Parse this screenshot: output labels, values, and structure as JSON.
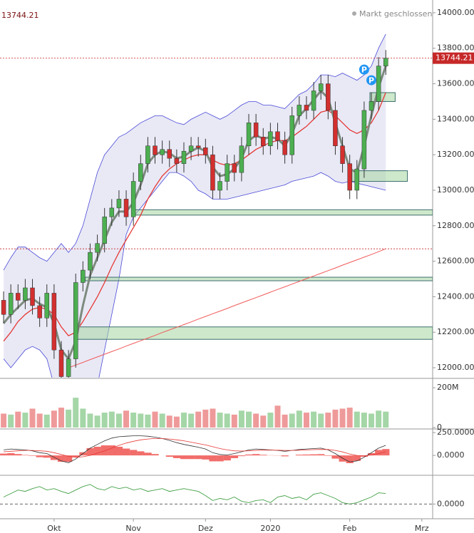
{
  "chart_data": [
    {
      "type": "candlestick",
      "status": "Markt geschlossen",
      "x": [
        0,
        1,
        2,
        3,
        4,
        5,
        6,
        7,
        8,
        9,
        10,
        11,
        12,
        13,
        14,
        15,
        16,
        17,
        18,
        19,
        20,
        21,
        22,
        23,
        24,
        25,
        26,
        27,
        28,
        29,
        30,
        31,
        32,
        33,
        34,
        35,
        36,
        37,
        38,
        39,
        40,
        41,
        42,
        43,
        44,
        45,
        46,
        47,
        48,
        49,
        50,
        51,
        52,
        53
      ],
      "xlim": [
        -0.5,
        59.5
      ],
      "xticks": [
        {
          "value": 7,
          "label": "Okt"
        },
        {
          "value": 18,
          "label": "Nov"
        },
        {
          "value": 28,
          "label": "Dez"
        },
        {
          "value": 37,
          "label": "2020"
        },
        {
          "value": 48,
          "label": "Feb"
        },
        {
          "value": 58,
          "label": "Mrz"
        }
      ],
      "ylim": [
        11944,
        14072
      ],
      "yticks": [
        {
          "value": 12000,
          "label": "12000.00"
        },
        {
          "value": 12200,
          "label": "12200.00"
        },
        {
          "value": 12400,
          "label": "12400.00"
        },
        {
          "value": 12600,
          "label": "12600.00"
        },
        {
          "value": 12800,
          "label": "12800.00"
        },
        {
          "value": 13000,
          "label": "13000.00"
        },
        {
          "value": 13200,
          "label": "13200.00"
        },
        {
          "value": 13400,
          "label": "13400.00"
        },
        {
          "value": 13600,
          "label": "13600.00"
        },
        {
          "value": 13800,
          "label": "13800.00"
        },
        {
          "value": 14000,
          "label": "14000.00"
        }
      ],
      "open": [
        12380,
        12300,
        12420,
        12380,
        12450,
        12350,
        12280,
        12420,
        12100,
        11950,
        12050,
        12480,
        12550,
        12650,
        12700,
        12850,
        12900,
        12950,
        12850,
        13050,
        13150,
        13250,
        13200,
        13230,
        13180,
        13150,
        13220,
        13250,
        13240,
        13200,
        13000,
        13050,
        13150,
        13100,
        13250,
        13380,
        13300,
        13250,
        13330,
        13280,
        13200,
        13420,
        13480,
        13450,
        13560,
        13600,
        13450,
        13250,
        13150,
        13000,
        13120,
        13450,
        13500,
        13700
      ],
      "high": [
        12430,
        12470,
        12470,
        12500,
        12500,
        12400,
        12470,
        12470,
        12150,
        12100,
        12530,
        12600,
        12700,
        12750,
        12900,
        12950,
        13000,
        13000,
        13100,
        13200,
        13300,
        13300,
        13280,
        13280,
        13230,
        13270,
        13300,
        13300,
        13290,
        13250,
        13100,
        13200,
        13200,
        13300,
        13430,
        13430,
        13350,
        13380,
        13380,
        13330,
        13470,
        13530,
        13530,
        13610,
        13650,
        13650,
        13500,
        13300,
        13200,
        13170,
        13500,
        13550,
        13750,
        13790
      ],
      "low": [
        12250,
        12250,
        12330,
        12330,
        12300,
        12230,
        12230,
        12050,
        11900,
        11900,
        12000,
        12430,
        12500,
        12600,
        12650,
        12800,
        12850,
        12800,
        12800,
        13000,
        13100,
        13150,
        13150,
        13130,
        13100,
        13100,
        13170,
        13190,
        13150,
        12950,
        12950,
        13000,
        13050,
        13050,
        13200,
        13250,
        13200,
        13200,
        13230,
        13150,
        13150,
        13370,
        13400,
        13400,
        13510,
        13400,
        13200,
        13100,
        12950,
        12950,
        13070,
        13400,
        13450,
        13650
      ],
      "close": [
        12300,
        12420,
        12380,
        12450,
        12350,
        12280,
        12420,
        12100,
        11950,
        12050,
        12480,
        12550,
        12650,
        12700,
        12850,
        12900,
        12950,
        12850,
        13050,
        13150,
        13250,
        13200,
        13230,
        13180,
        13150,
        13220,
        13250,
        13240,
        13200,
        13000,
        13050,
        13150,
        13100,
        13250,
        13380,
        13300,
        13250,
        13330,
        13280,
        13200,
        13420,
        13480,
        13450,
        13560,
        13600,
        13450,
        13250,
        13150,
        13000,
        13120,
        13450,
        13500,
        13700,
        13744.21
      ],
      "up_color": "#4caf50",
      "down_color": "#d32f2f",
      "band": {
        "color": "#4a4ad8",
        "fill": "#e4e4f4",
        "upper": [
          12550,
          12620,
          12680,
          12680,
          12650,
          12620,
          12600,
          12650,
          12700,
          12650,
          12700,
          12800,
          12950,
          13100,
          13200,
          13250,
          13300,
          13320,
          13350,
          13380,
          13400,
          13420,
          13420,
          13400,
          13380,
          13370,
          13400,
          13420,
          13440,
          13420,
          13400,
          13420,
          13450,
          13480,
          13500,
          13500,
          13480,
          13480,
          13470,
          13460,
          13500,
          13540,
          13560,
          13600,
          13650,
          13650,
          13640,
          13660,
          13640,
          13620,
          13650,
          13700,
          13800,
          13880
        ],
        "lower": [
          12050,
          12000,
          12050,
          12100,
          12120,
          12100,
          12050,
          11900,
          11700,
          11600,
          11550,
          11650,
          11750,
          11900,
          12100,
          12300,
          12500,
          12750,
          12850,
          12900,
          12950,
          13000,
          13050,
          13100,
          13100,
          13080,
          13050,
          13000,
          12980,
          12950,
          12950,
          12950,
          12960,
          12970,
          12980,
          12990,
          13000,
          13010,
          13020,
          13030,
          13050,
          13060,
          13070,
          13080,
          13100,
          13080,
          13050,
          13040,
          13050,
          13040,
          13030,
          13020,
          13010,
          13000
        ]
      },
      "lines": [
        {
          "color": "#f05a5a",
          "width": 1,
          "values": [
            null,
            null,
            null,
            null,
            null,
            null,
            null,
            null,
            null,
            12000,
            12015,
            12030,
            12046,
            12061,
            12076,
            12091,
            12106,
            12122,
            12137,
            12152,
            12167,
            12182,
            12198,
            12213,
            12228,
            12243,
            12258,
            12274,
            12289,
            12304,
            12319,
            12334,
            12350,
            12365,
            12380,
            12395,
            12410,
            12426,
            12441,
            12456,
            12471,
            12486,
            12502,
            12517,
            12532,
            12547,
            12562,
            12578,
            12593,
            12608,
            12623,
            12638,
            12654,
            12670
          ]
        },
        {
          "color": "#e53935",
          "width": 1.3,
          "values": [
            12150,
            12200,
            12260,
            12300,
            12330,
            12340,
            12330,
            12300,
            12230,
            12180,
            12200,
            12260,
            12330,
            12400,
            12480,
            12570,
            12650,
            12720,
            12790,
            12860,
            12950,
            13020,
            13080,
            13120,
            13150,
            13170,
            13190,
            13200,
            13200,
            13170,
            13150,
            13140,
            13150,
            13170,
            13200,
            13230,
            13250,
            13270,
            13280,
            13280,
            13300,
            13330,
            13360,
            13400,
            13440,
            13450,
            13420,
            13380,
            13340,
            13320,
            13340,
            13380,
            13450,
            13550
          ]
        },
        {
          "color": "#7d8b7d",
          "width": 3,
          "values": [
            12250,
            12300,
            12340,
            12380,
            12390,
            12360,
            12340,
            12250,
            12100,
            12050,
            12150,
            12350,
            12520,
            12620,
            12720,
            12820,
            12880,
            12880,
            12930,
            13030,
            13150,
            13200,
            13220,
            13210,
            13180,
            13190,
            13220,
            13240,
            13220,
            13130,
            13080,
            13090,
            13120,
            13180,
            13280,
            13310,
            13290,
            13300,
            13290,
            13250,
            13320,
            13420,
            13460,
            13510,
            13560,
            13520,
            13380,
            13250,
            13120,
            13100,
            13250,
            13420,
            13580,
            13700
          ]
        }
      ],
      "zones": [
        {
          "low": 12860,
          "high": 12890,
          "start": 17.8,
          "end": 59.5
        },
        {
          "low": 12490,
          "high": 12510,
          "start": 11.3,
          "end": 59.5
        },
        {
          "low": 12160,
          "high": 12230,
          "start": 9.8,
          "end": 59.5
        },
        {
          "low": 13050,
          "high": 13110,
          "start": 48.3,
          "end": 56
        },
        {
          "low": 13500,
          "high": 13550,
          "start": 50.8,
          "end": 54.3
        }
      ],
      "zone_color": "#a5d6a0",
      "price_lines": [
        13744.21,
        12670
      ],
      "price_line_color": "#c62828",
      "markers": [
        {
          "label": "P",
          "x": 50,
          "y": 13680
        },
        {
          "label": "P",
          "x": 51,
          "y": 13620
        }
      ],
      "marker_color": "#2196f3"
    },
    {
      "type": "bar",
      "values": [
        70,
        65,
        80,
        75,
        95,
        70,
        65,
        85,
        100,
        90,
        150,
        95,
        70,
        60,
        75,
        80,
        70,
        85,
        75,
        70,
        65,
        80,
        70,
        60,
        55,
        75,
        70,
        80,
        90,
        95,
        75,
        70,
        65,
        85,
        80,
        70,
        60,
        75,
        110,
        65,
        70,
        85,
        75,
        80,
        70,
        75,
        90,
        95,
        100,
        80,
        75,
        70,
        85,
        80
      ],
      "ylim": [
        0,
        240
      ],
      "yticks": [
        {
          "value": 0,
          "label": "0"
        },
        {
          "value": 200,
          "label": "200M"
        }
      ],
      "up_color": "#a5d6a7",
      "down_color": "#ef9a9a"
    },
    {
      "type": "macd",
      "macd": [
        60,
        70,
        65,
        60,
        50,
        30,
        20,
        -20,
        -60,
        -80,
        -40,
        20,
        80,
        120,
        160,
        190,
        205,
        210,
        215,
        215,
        210,
        200,
        185,
        165,
        140,
        120,
        105,
        90,
        70,
        30,
        10,
        5,
        20,
        40,
        60,
        70,
        65,
        60,
        55,
        45,
        55,
        65,
        70,
        75,
        80,
        60,
        20,
        -30,
        -70,
        -60,
        -20,
        30,
        80,
        110
      ],
      "signal": [
        40,
        45,
        50,
        55,
        55,
        50,
        45,
        30,
        10,
        -10,
        -20,
        -15,
        0,
        25,
        50,
        80,
        110,
        135,
        155,
        170,
        180,
        185,
        185,
        180,
        170,
        160,
        145,
        130,
        115,
        95,
        75,
        60,
        50,
        48,
        50,
        55,
        58,
        58,
        57,
        55,
        55,
        57,
        60,
        63,
        66,
        65,
        55,
        38,
        15,
        0,
        -5,
        5,
        20,
        40
      ],
      "histogram": [
        20,
        25,
        15,
        5,
        -5,
        -20,
        -25,
        -50,
        -70,
        -70,
        -20,
        35,
        80,
        95,
        110,
        110,
        95,
        75,
        60,
        45,
        30,
        15,
        0,
        -15,
        -30,
        -40,
        -40,
        -40,
        -45,
        -65,
        -65,
        -55,
        -30,
        -8,
        10,
        15,
        7,
        2,
        -2,
        -10,
        0,
        8,
        10,
        12,
        14,
        -5,
        -35,
        -68,
        -85,
        -60,
        -15,
        25,
        60,
        70
      ],
      "macd_color": "#333333",
      "signal_color": "#e53935",
      "histogram_color": "#ef5350",
      "ylim": [
        -210,
        282
      ],
      "yticks": [
        {
          "value": 0,
          "label": "0.0000"
        },
        {
          "value": 250,
          "label": "250.0000"
        }
      ]
    },
    {
      "type": "line",
      "values": [
        0.1,
        0.15,
        0.2,
        0.18,
        0.22,
        0.25,
        0.2,
        0.22,
        0.18,
        0.15,
        0.2,
        0.25,
        0.28,
        0.22,
        0.2,
        0.25,
        0.22,
        0.24,
        0.2,
        0.22,
        0.18,
        0.2,
        0.22,
        0.18,
        0.2,
        0.22,
        0.2,
        0.18,
        0.12,
        0.05,
        0.08,
        0.06,
        0.1,
        0.04,
        0.02,
        0.05,
        0.06,
        0.02,
        0.1,
        0.12,
        0.08,
        0.1,
        0.06,
        0.14,
        0.16,
        0.12,
        0.08,
        0.02,
        0.0,
        0.02,
        0.06,
        0.1,
        0.16,
        0.15
      ],
      "color": "#43a047",
      "ylim": [
        -0.2,
        0.4
      ],
      "yticks": [
        {
          "value": 0,
          "label": "0.0000"
        }
      ],
      "grid": "dashed"
    }
  ]
}
